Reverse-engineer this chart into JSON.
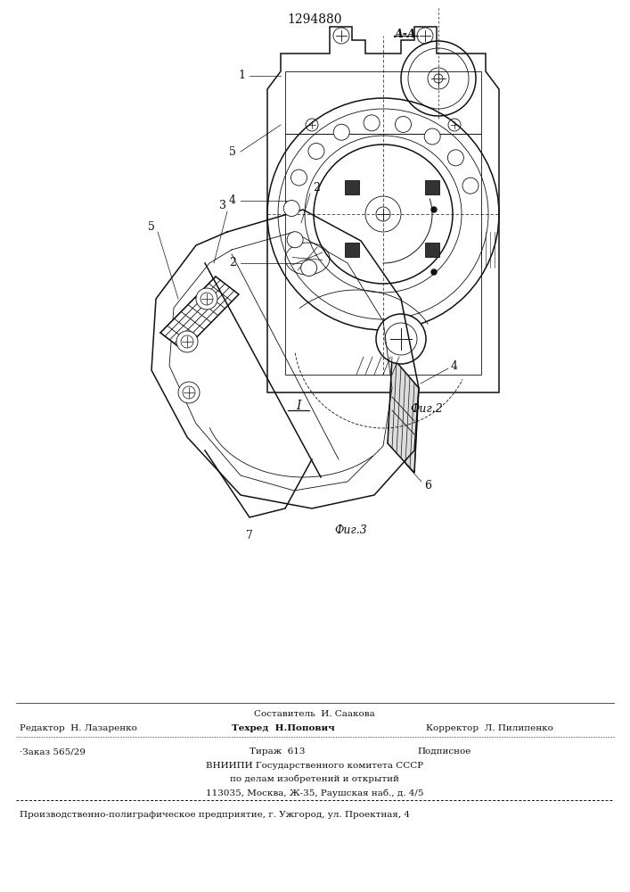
{
  "patent_number": "1294880",
  "fig2_label": "A-A",
  "fig2_caption": "Фиг.2",
  "fig3_caption": "Фиг.3",
  "footer": {
    "line1": "Составитель  И. Саакова",
    "line2_left": "Редактор  Н. Лазаренко",
    "line2_mid": "Техред  Н.Попович",
    "line2_right": "Корректор  Л. Пилипенко",
    "line3_left": "·Заказ 565/29",
    "line3_mid": "Тираж  613",
    "line3_right": "Подписное",
    "line4": "ВНИИПИ Государственного комитета СССР",
    "line5": "по делам изобретений и открытий",
    "line6": "113035, Москва, Ж-35, Раушская наб., д. 4/5",
    "line7": "Производственно-полиграфическое предприятие, г. Ужгород, ул. Проектная, 4"
  },
  "bg_color": "#ffffff",
  "line_color": "#111111",
  "text_color": "#111111"
}
